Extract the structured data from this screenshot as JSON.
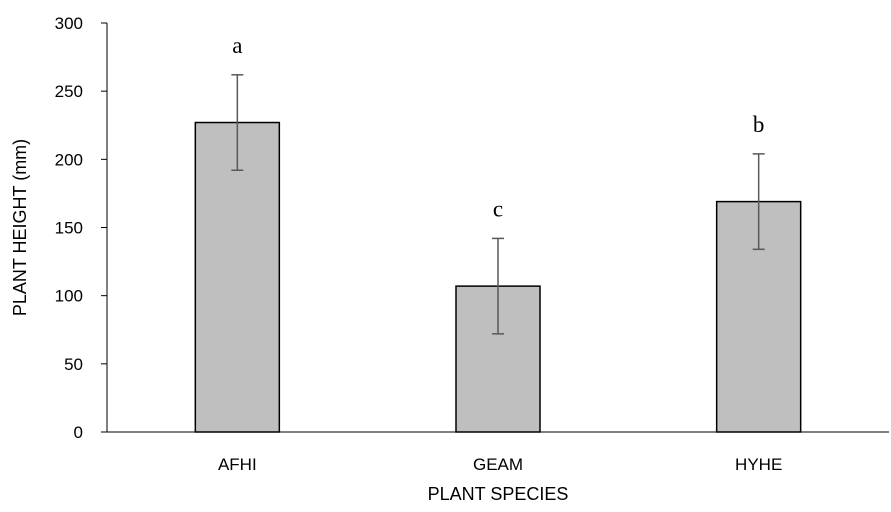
{
  "chart_data": {
    "type": "bar",
    "categories": [
      "AFHI",
      "GEAM",
      "HYHE"
    ],
    "values": [
      227,
      107,
      169
    ],
    "error": [
      35,
      35,
      35
    ],
    "significance_labels": [
      "a",
      "c",
      "b"
    ],
    "title": "",
    "xlabel": "PLANT SPECIES",
    "ylabel": "PLANT HEIGHT (mm)",
    "ylim": [
      0,
      300
    ],
    "yticks": [
      "0",
      "50",
      "100",
      "150",
      "200",
      "250",
      "300"
    ],
    "grid": false,
    "bar_color": "#bfbfbf",
    "bar_edge_color": "#000000",
    "error_bar_color": "#595959"
  }
}
